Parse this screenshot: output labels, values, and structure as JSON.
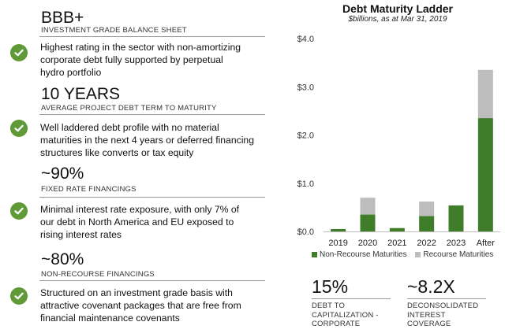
{
  "left": {
    "stats": [
      {
        "value": "BBB+",
        "caption": "INVESTMENT GRADE BALANCE SHEET"
      },
      {
        "value": "10 YEARS",
        "caption": "AVERAGE PROJECT DEBT TERM TO MATURITY"
      },
      {
        "value": "~90%",
        "caption": "FIXED RATE FINANCINGS"
      },
      {
        "value": "~80%",
        "caption": "NON-RECOURSE FINANCINGS"
      }
    ],
    "bullets": [
      {
        "line1": "Highest rating in the sector with non-amortizing",
        "line2": "corporate debt fully supported by perpetual",
        "line3": "hydro portfolio"
      },
      {
        "line1": "Well laddered debt profile with no material",
        "line2": "maturities in the next 4 years or deferred financing",
        "line3": "structures like converts or tax equity"
      },
      {
        "line1": "Minimal interest rate exposure, with only 7% of",
        "line2": "our debt in North America and EU exposed to",
        "line3": "rising interest rates"
      },
      {
        "line1": "Structured on an investment grade basis with",
        "line2": "attractive covenant packages that are free from",
        "line3": "financial maintenance covenants"
      }
    ],
    "icon": "check-circle-icon",
    "accent": "#5f9a36"
  },
  "chart_data": {
    "type": "bar",
    "stacked": true,
    "title": "Debt Maturity Ladder",
    "subtitle": "$billions, as at Mar 31, 2019",
    "categories": [
      "2019",
      "2020",
      "2021",
      "2022",
      "2023",
      "After"
    ],
    "series": [
      {
        "name": "Non-Recourse Maturities",
        "color": "#3f7d2a",
        "values": [
          0.05,
          0.35,
          0.07,
          0.32,
          0.54,
          2.35
        ]
      },
      {
        "name": "Recourse Maturities",
        "color": "#bdbdbd",
        "values": [
          0,
          0.35,
          0,
          0.3,
          0,
          1.0
        ]
      }
    ],
    "yticks": [
      "$0.0",
      "$1.0",
      "$2.0",
      "$3.0",
      "$4.0"
    ],
    "ylim": [
      0,
      4
    ],
    "grid": false,
    "legend_position": "bottom"
  },
  "bottom_stats": [
    {
      "value": "15%",
      "caption1": "DEBT TO",
      "caption2": "CAPITALIZATION -",
      "caption3": "CORPORATE"
    },
    {
      "value": "~8.2X",
      "caption1": "DECONSOLIDATED",
      "caption2": "INTEREST",
      "caption3": "COVERAGE"
    }
  ]
}
